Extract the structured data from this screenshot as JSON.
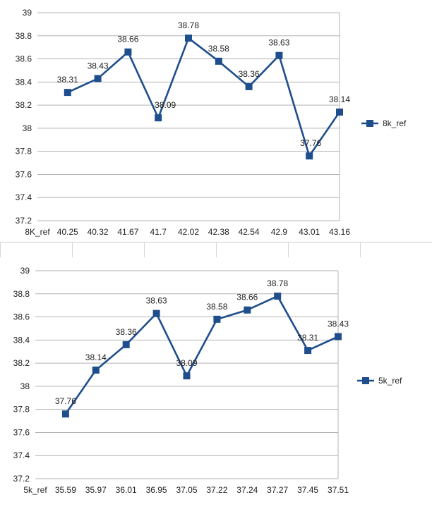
{
  "chart_data": [
    {
      "type": "line",
      "title": "",
      "xlabel": "",
      "ylabel": "",
      "ylim": [
        37.2,
        39
      ],
      "ystep": 0.2,
      "y_tick_labels": [
        "37.2",
        "37.4",
        "37.6",
        "37.8",
        "38",
        "38.2",
        "38.4",
        "38.6",
        "38.8",
        "39"
      ],
      "grid": true,
      "legend_position": "right",
      "categories": [
        "8K_ref",
        "40.25",
        "40.32",
        "41.67",
        "41.7",
        "42.02",
        "42.38",
        "42.54",
        "42.9",
        "43.01",
        "43.16"
      ],
      "series": [
        {
          "name": "8k_ref",
          "color": "#1f4e8c",
          "marker": "square",
          "values": [
            null,
            38.31,
            38.43,
            38.66,
            38.09,
            38.78,
            38.58,
            38.36,
            38.63,
            37.76,
            38.14
          ],
          "data_labels": [
            "",
            "38.31",
            "38.43",
            "38.66",
            "38.09",
            "38.78",
            "38.58",
            "38.36",
            "38.63",
            "37.76",
            "38.14"
          ]
        }
      ]
    },
    {
      "type": "line",
      "title": "",
      "xlabel": "",
      "ylabel": "",
      "ylim": [
        37.2,
        39
      ],
      "ystep": 0.2,
      "y_tick_labels": [
        "37.2",
        "37.4",
        "37.6",
        "37.8",
        "38",
        "38.2",
        "38.4",
        "38.6",
        "38.8",
        "39"
      ],
      "grid": true,
      "legend_position": "right",
      "categories": [
        "5k_ref",
        "35.59",
        "35.97",
        "36.01",
        "36.95",
        "37.05",
        "37.22",
        "37.24",
        "37.27",
        "37.45",
        "37.51"
      ],
      "series": [
        {
          "name": "5k_ref",
          "color": "#1f4e8c",
          "marker": "square",
          "values": [
            null,
            37.76,
            38.14,
            38.36,
            38.63,
            38.09,
            38.58,
            38.66,
            38.78,
            38.31,
            38.43
          ],
          "data_labels": [
            "",
            "37.76",
            "38.14",
            "38.36",
            "38.63",
            "38.09",
            "38.58",
            "38.66",
            "38.78",
            "38.31",
            "38.43"
          ]
        }
      ]
    }
  ]
}
